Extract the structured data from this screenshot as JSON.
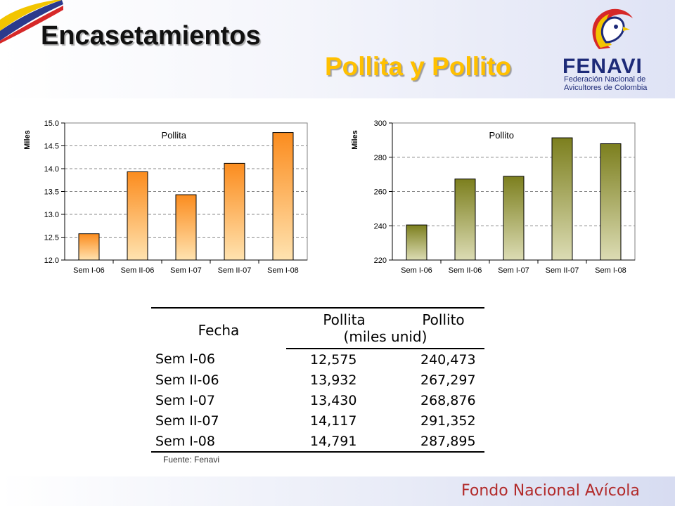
{
  "slide": {
    "title": "Encasetamientos",
    "subtitle": "Pollita y Pollito",
    "colors": {
      "subtitle": "#ffc000",
      "logo_blue": "#1d2a78",
      "footer_red": "#b22a2a"
    }
  },
  "logo": {
    "wordmark": "FENAVI",
    "line1": "Federación Nacional de",
    "line2": "Avicultores de Colombia",
    "icon": "rooster-emblem-icon"
  },
  "chart_data": [
    {
      "type": "bar",
      "title": "Pollita",
      "ylabel": "Miles",
      "categories": [
        "Sem I-06",
        "Sem II-06",
        "Sem I-07",
        "Sem II-07",
        "Sem I-08"
      ],
      "values": [
        12.575,
        13.932,
        13.43,
        14.117,
        14.791
      ],
      "ylim": [
        12.0,
        15.0
      ],
      "yticks": [
        12.0,
        12.5,
        13.0,
        13.5,
        14.0,
        14.5,
        15.0
      ],
      "ytick_labels": [
        "12.0",
        "12.5",
        "13.0",
        "13.5",
        "14.0",
        "14.5",
        "15.0"
      ],
      "grid": true,
      "bar_color_top": "#fb8c1e",
      "bar_color_bottom": "#ffe3b0"
    },
    {
      "type": "bar",
      "title": "Pollito",
      "ylabel": "Miles",
      "categories": [
        "Sem I-06",
        "Sem II-06",
        "Sem I-07",
        "Sem II-07",
        "Sem I-08"
      ],
      "values": [
        240.473,
        267.297,
        268.876,
        291.352,
        287.895
      ],
      "ylim": [
        220,
        300
      ],
      "yticks": [
        220,
        240,
        260,
        280,
        300
      ],
      "ytick_labels": [
        "220",
        "240",
        "260",
        "280",
        "300"
      ],
      "grid": true,
      "bar_color_top": "#7c7f1e",
      "bar_color_bottom": "#dcdcb4"
    }
  ],
  "table": {
    "headers": {
      "fecha": "Fecha",
      "pollita": "Pollita",
      "pollito": "Pollito",
      "unit": "(miles unid)"
    },
    "rows": [
      [
        "Sem I-06",
        "12,575",
        "240,473"
      ],
      [
        "Sem II-06",
        "13,932",
        "267,297"
      ],
      [
        "Sem I-07",
        "13,430",
        "268,876"
      ],
      [
        "Sem II-07",
        "14,117",
        "291,352"
      ],
      [
        "Sem I-08",
        "14,791",
        "287,895"
      ]
    ]
  },
  "source": "Fuente: Fenavi",
  "footer": "Fondo Nacional Avícola"
}
